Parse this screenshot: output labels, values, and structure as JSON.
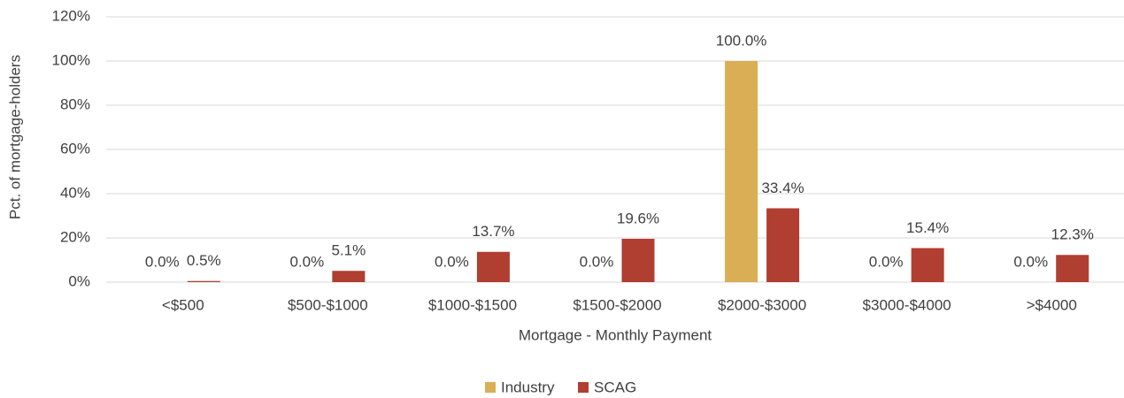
{
  "chart_data": {
    "type": "bar",
    "x_label": "Mortgage - Monthly Payment",
    "y_label": "Pct. of mortgage-holders",
    "categories": [
      "<$500",
      "$500-$1000",
      "$1000-$1500",
      "$1500-$2000",
      "$2000-$3000",
      "$3000-$4000",
      ">$4000"
    ],
    "series": [
      {
        "name": "Industry",
        "color": "#d9ae54",
        "values": [
          0,
          0,
          0,
          0,
          100,
          0,
          0
        ],
        "value_labels": [
          "0.0%",
          "0.0%",
          "0.0%",
          "0.0%",
          "100.0%",
          "0.0%",
          "0.0%"
        ]
      },
      {
        "name": "SCAG",
        "color": "#b03e31",
        "values": [
          0.5,
          5.1,
          13.7,
          19.6,
          33.4,
          15.4,
          12.3
        ],
        "value_labels": [
          "0.5%",
          "5.1%",
          "13.7%",
          "19.6%",
          "33.4%",
          "15.4%",
          "12.3%"
        ]
      }
    ],
    "ylim": [
      0,
      120
    ],
    "yticks": [
      {
        "value": 0,
        "label": "0%"
      },
      {
        "value": 20,
        "label": "20%"
      },
      {
        "value": 40,
        "label": "40%"
      },
      {
        "value": 60,
        "label": "60%"
      },
      {
        "value": 80,
        "label": "80%"
      },
      {
        "value": 100,
        "label": "100%"
      },
      {
        "value": 120,
        "label": "120%"
      }
    ],
    "grid": true,
    "legend": "bottom"
  }
}
